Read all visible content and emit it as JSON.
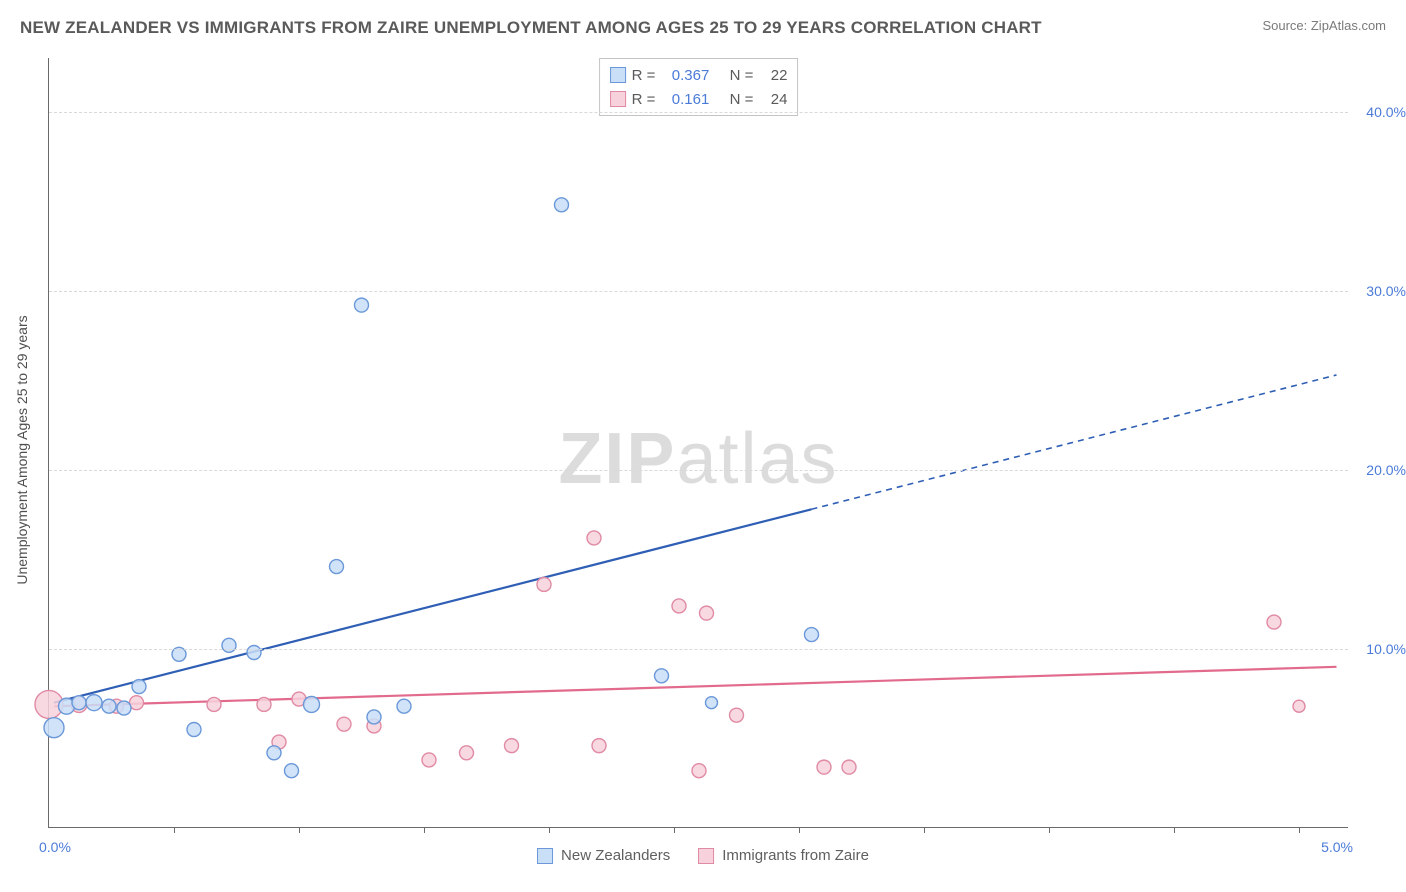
{
  "header": {
    "title": "NEW ZEALANDER VS IMMIGRANTS FROM ZAIRE UNEMPLOYMENT AMONG AGES 25 TO 29 YEARS CORRELATION CHART",
    "source": "Source: ZipAtlas.com"
  },
  "watermark": {
    "zip": "ZIP",
    "atlas": "atlas"
  },
  "chart": {
    "type": "scatter",
    "y_axis_title": "Unemployment Among Ages 25 to 29 years",
    "x_origin_label": "0.0%",
    "x_end_label": "5.0%",
    "xlim": [
      0,
      5.2
    ],
    "ylim": [
      0,
      43
    ],
    "y_ticks": [
      10,
      20,
      30,
      40
    ],
    "y_tick_labels": [
      "10.0%",
      "20.0%",
      "30.0%",
      "40.0%"
    ],
    "x_ticks": [
      0.5,
      1.0,
      1.5,
      2.0,
      2.5,
      3.0,
      3.5,
      4.0,
      4.5,
      5.0
    ],
    "grid_color": "#d9d9d9",
    "background_color": "#ffffff",
    "axis_color": "#6a6a6a",
    "tick_label_color": "#4a7bd8",
    "series": {
      "blue": {
        "label": "New Zealanders",
        "fill": "#c9def7",
        "stroke": "#6a98d8",
        "line_color": "#2f5fb5",
        "r_label": "R =",
        "r_value": "0.367",
        "n_label": "N =",
        "n_value": "22",
        "trend": {
          "x1": 0.02,
          "y1": 7.0,
          "x2": 3.05,
          "y2": 17.8,
          "x2_dash": 5.15,
          "y2_dash": 25.3
        },
        "points": [
          {
            "x": 0.02,
            "y": 5.6,
            "r": 10
          },
          {
            "x": 0.07,
            "y": 6.8,
            "r": 8
          },
          {
            "x": 0.12,
            "y": 7.0,
            "r": 7
          },
          {
            "x": 0.18,
            "y": 7.0,
            "r": 8
          },
          {
            "x": 0.24,
            "y": 6.8,
            "r": 7
          },
          {
            "x": 0.3,
            "y": 6.7,
            "r": 7
          },
          {
            "x": 0.36,
            "y": 7.9,
            "r": 7
          },
          {
            "x": 0.52,
            "y": 9.7,
            "r": 7
          },
          {
            "x": 0.58,
            "y": 5.5,
            "r": 7
          },
          {
            "x": 0.72,
            "y": 10.2,
            "r": 7
          },
          {
            "x": 0.82,
            "y": 9.8,
            "r": 7
          },
          {
            "x": 0.9,
            "y": 4.2,
            "r": 7
          },
          {
            "x": 0.97,
            "y": 3.2,
            "r": 7
          },
          {
            "x": 1.05,
            "y": 6.9,
            "r": 8
          },
          {
            "x": 1.15,
            "y": 14.6,
            "r": 7
          },
          {
            "x": 1.25,
            "y": 29.2,
            "r": 7
          },
          {
            "x": 1.3,
            "y": 6.2,
            "r": 7
          },
          {
            "x": 1.42,
            "y": 6.8,
            "r": 7
          },
          {
            "x": 2.05,
            "y": 34.8,
            "r": 7
          },
          {
            "x": 2.45,
            "y": 8.5,
            "r": 7
          },
          {
            "x": 2.65,
            "y": 7.0,
            "r": 6
          },
          {
            "x": 3.05,
            "y": 10.8,
            "r": 7
          }
        ]
      },
      "pink": {
        "label": "Immigrants from Zaire",
        "fill": "#f7d1dc",
        "stroke": "#e08aa3",
        "line_color": "#e26a8d",
        "r_label": "R =",
        "r_value": "0.161",
        "n_label": "N =",
        "n_value": "24",
        "trend": {
          "x1": 0.02,
          "y1": 6.8,
          "x2": 5.15,
          "y2": 9.0
        },
        "points": [
          {
            "x": 0.0,
            "y": 6.9,
            "r": 14
          },
          {
            "x": 0.12,
            "y": 6.9,
            "r": 8
          },
          {
            "x": 0.27,
            "y": 6.8,
            "r": 7
          },
          {
            "x": 0.35,
            "y": 7.0,
            "r": 7
          },
          {
            "x": 0.66,
            "y": 6.9,
            "r": 7
          },
          {
            "x": 0.86,
            "y": 6.9,
            "r": 7
          },
          {
            "x": 0.92,
            "y": 4.8,
            "r": 7
          },
          {
            "x": 1.0,
            "y": 7.2,
            "r": 7
          },
          {
            "x": 1.18,
            "y": 5.8,
            "r": 7
          },
          {
            "x": 1.3,
            "y": 5.7,
            "r": 7
          },
          {
            "x": 1.52,
            "y": 3.8,
            "r": 7
          },
          {
            "x": 1.67,
            "y": 4.2,
            "r": 7
          },
          {
            "x": 1.85,
            "y": 4.6,
            "r": 7
          },
          {
            "x": 1.98,
            "y": 13.6,
            "r": 7
          },
          {
            "x": 2.18,
            "y": 16.2,
            "r": 7
          },
          {
            "x": 2.2,
            "y": 4.6,
            "r": 7
          },
          {
            "x": 2.52,
            "y": 12.4,
            "r": 7
          },
          {
            "x": 2.6,
            "y": 3.2,
            "r": 7
          },
          {
            "x": 2.63,
            "y": 12.0,
            "r": 7
          },
          {
            "x": 2.75,
            "y": 6.3,
            "r": 7
          },
          {
            "x": 3.1,
            "y": 3.4,
            "r": 7
          },
          {
            "x": 3.2,
            "y": 3.4,
            "r": 7
          },
          {
            "x": 4.9,
            "y": 11.5,
            "r": 7
          },
          {
            "x": 5.0,
            "y": 6.8,
            "r": 6
          }
        ]
      }
    }
  }
}
